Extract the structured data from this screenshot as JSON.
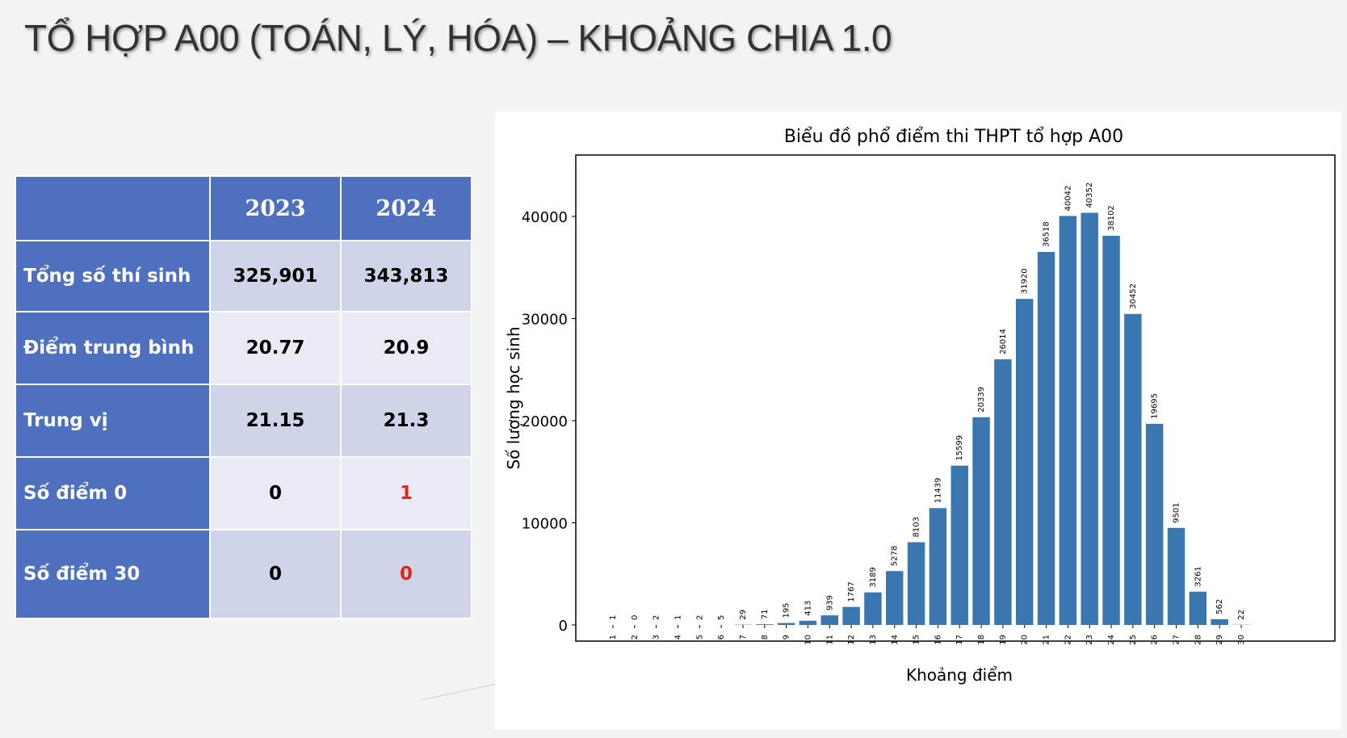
{
  "slide": {
    "title": "TỔ HỢP A00 (TOÁN, LÝ, HÓA) – KHOẢNG CHIA 1.0"
  },
  "table": {
    "header": [
      "",
      "2023",
      "2024"
    ],
    "rows": [
      {
        "label": "Tổng số thí sinh",
        "v2023": "325,901",
        "v2024": "343,813"
      },
      {
        "label": "Điểm trung bình",
        "v2023": "20.77",
        "v2024": "20.9"
      },
      {
        "label": "Trung vị",
        "v2023": "21.15",
        "v2024": "21.3"
      },
      {
        "label": "Số điểm 0",
        "v2023": "0",
        "v2024": "1"
      },
      {
        "label": "Số điểm 30",
        "v2023": "0",
        "v2024": "0"
      }
    ]
  },
  "colors": {
    "header_blue": "#4f70bf",
    "cell_dark": "#cfd4e8",
    "cell_light": "#e8ebf4",
    "highlight_red": "#e0251b",
    "bar": "#3a76b0"
  },
  "chart_data": {
    "type": "bar",
    "title": "Biểu đồ phổ điểm thi THPT tổ hợp A00",
    "xlabel": "Khoảng điểm",
    "ylabel": "Số lượng học sinh",
    "categories": [
      "1",
      "2",
      "3",
      "4",
      "5",
      "6",
      "7",
      "8",
      "9",
      "10",
      "11",
      "12",
      "13",
      "14",
      "15",
      "16",
      "17",
      "18",
      "19",
      "20",
      "21",
      "22",
      "23",
      "24",
      "25",
      "26",
      "27",
      "28",
      "29",
      "30"
    ],
    "values": [
      1,
      0,
      2,
      1,
      2,
      5,
      29,
      71,
      195,
      413,
      939,
      1767,
      3189,
      5278,
      8103,
      11439,
      15599,
      20339,
      26014,
      31920,
      36518,
      40042,
      40352,
      38102,
      30452,
      19695,
      9501,
      3261,
      562,
      22
    ],
    "yticks": [
      0,
      10000,
      20000,
      30000,
      40000
    ],
    "ylim": [
      0,
      45500
    ],
    "grid": false,
    "bar_color": "#3a76b0"
  }
}
